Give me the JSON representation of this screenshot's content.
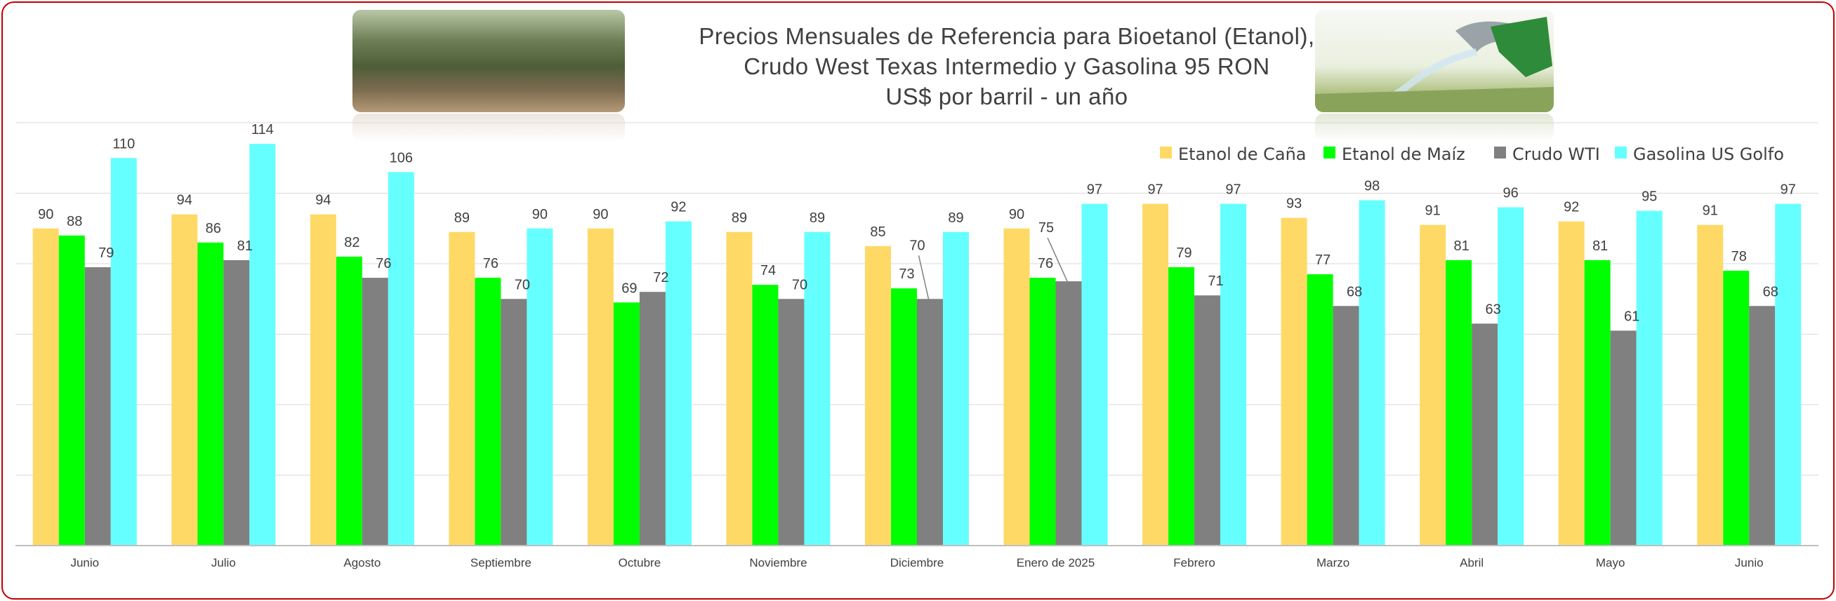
{
  "title": {
    "line1": "Precios Mensuales de Referencia para Bioetanol (Etanol),",
    "line2": "Crudo West Texas Intermedio y Gasolina 95 RON",
    "line3": "US$ por barril - un año"
  },
  "images": {
    "left": "sugarcane-field-photo",
    "right": "fuel-nozzle-photo"
  },
  "colors": {
    "border": "#c00000",
    "text": "#404040",
    "gridline": "#d9d9d9"
  },
  "chart_data": {
    "type": "bar",
    "categories": [
      "Junio",
      "Julio",
      "Agosto",
      "Septiembre",
      "Octubre",
      "Noviembre",
      "Diciembre",
      "Enero de 2025",
      "Febrero",
      "Marzo",
      "Abril",
      "Mayo",
      "Junio"
    ],
    "series": [
      {
        "name": "Etanol de Caña",
        "color": "#ffd966",
        "values": [
          90,
          94,
          94,
          89,
          90,
          89,
          85,
          90,
          97,
          93,
          91,
          92,
          91
        ]
      },
      {
        "name": "Etanol de Maíz",
        "color": "#00ff00",
        "values": [
          88,
          86,
          82,
          76,
          69,
          74,
          73,
          76,
          79,
          77,
          81,
          81,
          78
        ]
      },
      {
        "name": "Crudo WTI",
        "color": "#808080",
        "values": [
          79,
          81,
          76,
          70,
          72,
          70,
          70,
          75,
          71,
          68,
          63,
          61,
          68
        ]
      },
      {
        "name": "Gasolina US Golfo",
        "color": "#66ffff",
        "values": [
          110,
          114,
          106,
          90,
          92,
          89,
          89,
          97,
          97,
          98,
          96,
          95,
          97
        ]
      }
    ],
    "ylim": [
      0,
      120
    ],
    "y_axis_visible": false,
    "grid": true,
    "legend_position": "top-right"
  }
}
